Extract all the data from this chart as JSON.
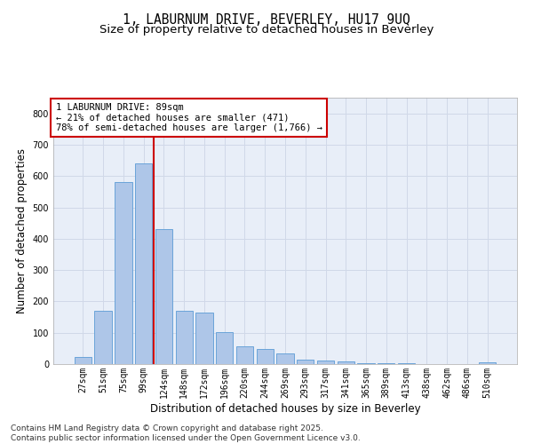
{
  "title_line1": "1, LABURNUM DRIVE, BEVERLEY, HU17 9UQ",
  "title_line2": "Size of property relative to detached houses in Beverley",
  "xlabel": "Distribution of detached houses by size in Beverley",
  "ylabel": "Number of detached properties",
  "categories": [
    "27sqm",
    "51sqm",
    "75sqm",
    "99sqm",
    "124sqm",
    "148sqm",
    "172sqm",
    "196sqm",
    "220sqm",
    "244sqm",
    "269sqm",
    "293sqm",
    "317sqm",
    "341sqm",
    "365sqm",
    "389sqm",
    "413sqm",
    "438sqm",
    "462sqm",
    "486sqm",
    "510sqm"
  ],
  "values": [
    22,
    170,
    580,
    640,
    430,
    170,
    165,
    103,
    57,
    48,
    35,
    15,
    10,
    8,
    4,
    4,
    2,
    1,
    0,
    0,
    5
  ],
  "bar_color": "#aec6e8",
  "bar_edgecolor": "#5b9bd5",
  "vline_x": 3.5,
  "vline_color": "#cc0000",
  "annotation_text": "1 LABURNUM DRIVE: 89sqm\n← 21% of detached houses are smaller (471)\n78% of semi-detached houses are larger (1,766) →",
  "annotation_box_edgecolor": "#cc0000",
  "annotation_box_facecolor": "#ffffff",
  "ylim": [
    0,
    850
  ],
  "yticks": [
    0,
    100,
    200,
    300,
    400,
    500,
    600,
    700,
    800
  ],
  "grid_color": "#d0d8e8",
  "background_color": "#e8eef8",
  "footer_text": "Contains HM Land Registry data © Crown copyright and database right 2025.\nContains public sector information licensed under the Open Government Licence v3.0.",
  "title_fontsize": 10.5,
  "subtitle_fontsize": 9.5,
  "axis_label_fontsize": 8.5,
  "tick_fontsize": 7,
  "annotation_fontsize": 7.5,
  "footer_fontsize": 6.5
}
